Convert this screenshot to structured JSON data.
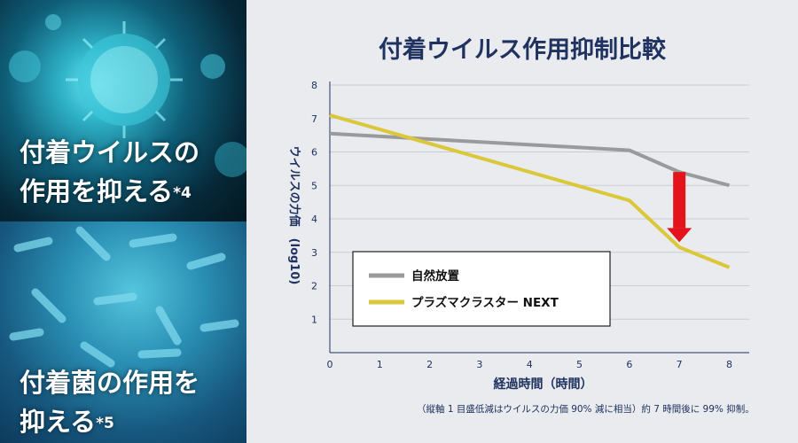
{
  "left_panel": {
    "top": {
      "line1": "付着ウイルスの",
      "line2": "作用を抑える",
      "note": "*4"
    },
    "bottom": {
      "line1": "付着菌の作用を",
      "line2": "抑える",
      "note": "*5"
    }
  },
  "chart_data": {
    "type": "line",
    "title": "付着ウイルス作用抑制比較",
    "xlabel": "経過時間（時間）",
    "ylabel": "ウイルスの力価　(log10)",
    "x": [
      0,
      6,
      7,
      8
    ],
    "xlim": [
      0,
      8.4
    ],
    "ylim": [
      0,
      8
    ],
    "xticks": [
      "0",
      "1",
      "2",
      "3",
      "4",
      "5",
      "6",
      "7",
      "8"
    ],
    "yticks": [
      "1",
      "2",
      "3",
      "4",
      "5",
      "6",
      "7",
      "8"
    ],
    "grid": "horizontal",
    "legend_position": "bottom-left",
    "series": [
      {
        "name": "自然放置",
        "color": "#9a9a9c",
        "points": [
          [
            0,
            6.55
          ],
          [
            6,
            6.05
          ],
          [
            7,
            5.4
          ],
          [
            8,
            5.0
          ]
        ]
      },
      {
        "name": "プラズマクラスター NEXT",
        "color": "#dbc73a",
        "points": [
          [
            0,
            7.1
          ],
          [
            6,
            4.55
          ],
          [
            7,
            3.15
          ],
          [
            8,
            2.55
          ]
        ]
      }
    ],
    "annotation": {
      "type": "arrow-down",
      "color": "#e3141b",
      "x": 7,
      "from": 5.4,
      "to": 3.3
    },
    "footnote": "（縦軸 1 目盛低減はウイルスの力価 90% 減に相当）約 7 時間後に 99% 抑制。"
  }
}
